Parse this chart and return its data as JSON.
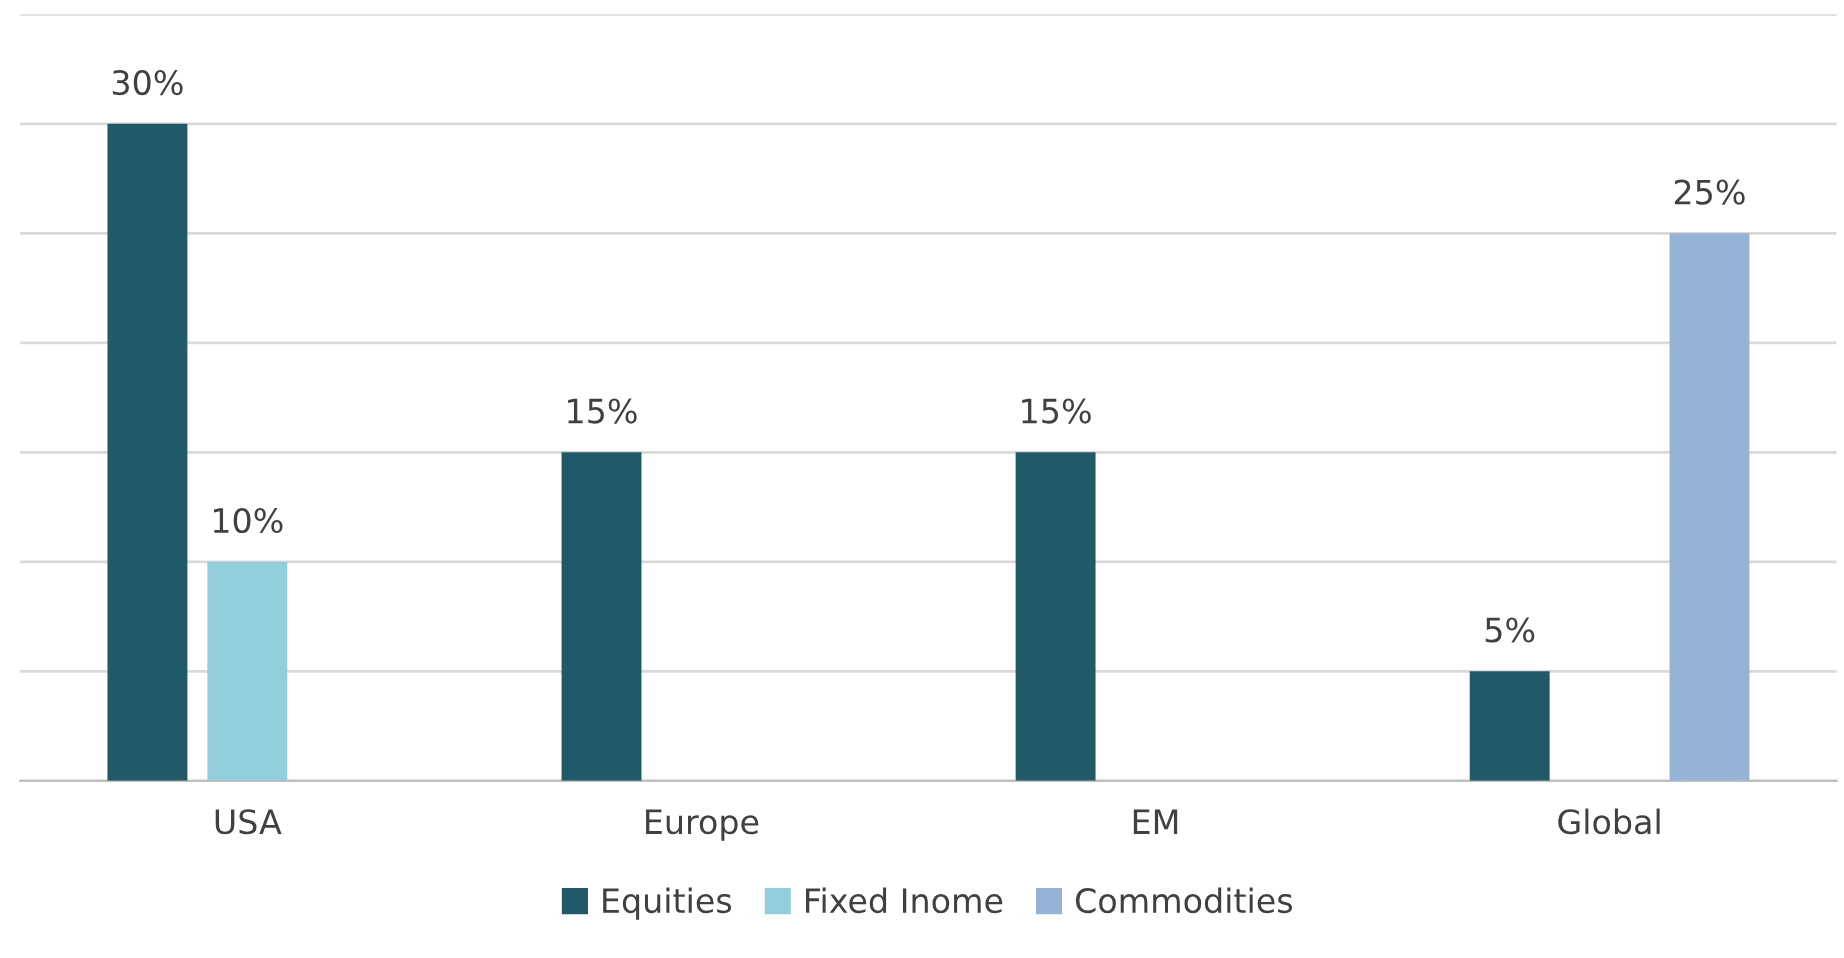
{
  "chart_data": {
    "type": "bar",
    "categories": [
      "USA",
      "Europe",
      "EM",
      "Global"
    ],
    "series": [
      {
        "name": "Equities",
        "color": "#215968",
        "values": [
          30,
          15,
          15,
          5
        ],
        "value_labels": [
          "30%",
          "15%",
          "15%",
          "5%"
        ]
      },
      {
        "name": "Fixed Inome",
        "color": "#92cddc",
        "values": [
          10,
          null,
          null,
          null
        ],
        "value_labels": [
          "10%",
          null,
          null,
          null
        ]
      },
      {
        "name": "Commodities",
        "color": "#95b3d7",
        "values": [
          null,
          null,
          null,
          25
        ],
        "value_labels": [
          null,
          null,
          null,
          "25%"
        ]
      }
    ],
    "ylim": [
      0,
      35
    ],
    "yticks": [
      {
        "value": 0,
        "label": null
      },
      {
        "value": 5,
        "label": null
      },
      {
        "value": 10,
        "label": null
      },
      {
        "value": 15,
        "label": null
      },
      {
        "value": 20,
        "label": null
      },
      {
        "value": 25,
        "label": null
      },
      {
        "value": 30,
        "label": null
      },
      {
        "value": 35,
        "label": null
      }
    ],
    "tick_labels": "x",
    "grid": "y",
    "legend": "bottom"
  }
}
